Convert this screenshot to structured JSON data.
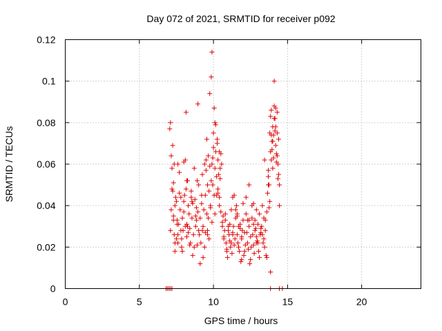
{
  "chart_data": {
    "type": "scatter",
    "title": "Day 072 of 2021, SRMTID for receiver p092",
    "xlabel": "GPS time / hours",
    "ylabel": "SRMTID / TECUs",
    "xlim": [
      0,
      24
    ],
    "ylim": [
      0,
      0.12
    ],
    "xticks": [
      "0",
      "5",
      "10",
      "15",
      "20"
    ],
    "yticks": [
      "0",
      "0.02",
      "0.04",
      "0.06",
      "0.08",
      "0.1",
      "0.12"
    ],
    "grid": true,
    "marker": "+",
    "color": "#e00000",
    "series": [
      {
        "name": "SRMTID",
        "x": [
          6.8,
          6.9,
          7.0,
          7.1,
          7.2,
          13.85,
          14.45,
          14.65,
          7.05,
          7.15,
          7.2,
          7.3,
          7.35,
          7.4,
          7.5,
          7.55,
          7.6,
          7.7,
          7.75,
          7.8,
          7.85,
          7.9,
          8.0,
          8.05,
          8.1,
          8.2,
          8.25,
          8.3,
          8.4,
          8.45,
          8.5,
          8.55,
          8.6,
          8.7,
          8.75,
          8.8,
          8.9,
          8.95,
          9.0,
          9.05,
          9.1,
          9.2,
          9.25,
          9.3,
          9.4,
          9.45,
          9.5,
          9.55,
          9.6,
          9.7,
          9.75,
          9.8,
          9.9,
          9.95,
          10.0,
          10.05,
          10.1,
          10.2,
          10.25,
          10.3,
          10.4,
          10.45,
          10.5,
          7.25,
          7.45,
          7.65,
          7.95,
          8.15,
          8.35,
          8.65,
          8.85,
          9.15,
          9.35,
          9.65,
          9.85,
          10.15,
          10.35,
          7.3,
          7.5,
          7.7,
          7.9,
          8.1,
          8.3,
          8.5,
          8.7,
          8.9,
          9.1,
          9.3,
          9.5,
          9.7,
          9.9,
          10.1,
          10.3,
          7.2,
          7.4,
          7.6,
          8.0,
          8.4,
          8.8,
          9.2,
          9.6,
          10.0,
          10.4,
          7.1,
          7.35,
          8.15,
          8.95,
          9.55,
          9.75,
          9.85,
          9.9,
          10.05,
          10.15,
          10.25,
          10.4,
          10.55,
          8.2,
          7.15,
          7.25,
          7.4,
          7.6,
          7.8,
          8.0,
          8.2,
          8.6,
          9.0,
          9.4,
          9.6,
          9.8,
          10.2,
          10.5,
          7.1,
          7.3,
          7.55,
          7.85,
          8.25,
          8.55,
          8.85,
          9.25,
          9.45,
          9.65,
          9.95,
          10.1,
          10.3,
          10.45,
          10.6,
          10.7,
          10.8,
          10.9,
          11.0,
          11.1,
          11.2,
          11.3,
          11.4,
          11.5,
          11.6,
          11.7,
          11.8,
          11.9,
          12.0,
          12.1,
          12.2,
          12.3,
          12.4,
          12.5,
          12.6,
          12.7,
          12.8,
          12.9,
          13.0,
          13.1,
          13.2,
          13.3,
          13.4,
          13.5,
          13.6,
          10.65,
          10.75,
          10.85,
          10.95,
          11.05,
          11.15,
          11.25,
          11.35,
          11.45,
          11.55,
          11.65,
          11.75,
          11.85,
          11.95,
          12.05,
          12.15,
          12.25,
          12.35,
          12.45,
          12.55,
          12.65,
          12.75,
          12.85,
          12.95,
          13.05,
          13.15,
          13.25,
          13.35,
          13.45,
          13.55,
          10.7,
          10.9,
          11.1,
          11.3,
          11.5,
          11.7,
          11.9,
          12.1,
          12.3,
          12.5,
          12.7,
          12.9,
          13.1,
          13.3,
          13.5,
          10.6,
          10.8,
          11.0,
          11.2,
          11.4,
          11.6,
          11.8,
          12.0,
          12.2,
          12.4,
          12.6,
          12.8,
          13.0,
          13.2,
          13.4,
          13.6,
          11.3,
          11.9,
          12.4,
          12.9,
          13.45,
          13.7,
          13.9,
          13.85,
          12.7,
          11.6,
          13.65,
          13.7,
          13.75,
          13.8,
          13.85,
          13.9,
          13.95,
          14.0,
          14.05,
          14.1,
          14.15,
          14.2,
          14.25,
          14.3,
          14.35,
          14.4,
          14.45,
          13.7,
          13.8,
          13.9,
          14.0,
          14.1,
          14.2,
          14.3,
          14.4,
          13.75,
          13.95,
          14.15,
          14.35,
          14.05,
          14.25,
          14.45,
          13.85,
          14.1,
          14.0,
          14.2,
          14.3
        ],
        "y": [
          0,
          0,
          0,
          0,
          0,
          0,
          0,
          0,
          0.077,
          0.064,
          0.048,
          0.035,
          0.026,
          0.018,
          0.042,
          0.031,
          0.022,
          0.056,
          0.038,
          0.028,
          0.02,
          0.034,
          0.061,
          0.045,
          0.03,
          0.025,
          0.052,
          0.04,
          0.029,
          0.022,
          0.047,
          0.034,
          0.016,
          0.058,
          0.043,
          0.03,
          0.021,
          0.037,
          0.05,
          0.026,
          0.012,
          0.041,
          0.055,
          0.03,
          0.02,
          0.045,
          0.062,
          0.036,
          0.028,
          0.047,
          0.059,
          0.04,
          0.032,
          0.05,
          0.068,
          0.045,
          0.036,
          0.054,
          0.072,
          0.048,
          0.04,
          0.058,
          0.065,
          0.069,
          0.044,
          0.031,
          0.028,
          0.048,
          0.036,
          0.026,
          0.039,
          0.022,
          0.038,
          0.064,
          0.052,
          0.066,
          0.055,
          0.033,
          0.024,
          0.046,
          0.018,
          0.062,
          0.027,
          0.044,
          0.02,
          0.052,
          0.034,
          0.015,
          0.057,
          0.024,
          0.06,
          0.08,
          0.062,
          0.058,
          0.04,
          0.026,
          0.042,
          0.021,
          0.035,
          0.045,
          0.026,
          0.075,
          0.044,
          0.08,
          0.06,
          0.085,
          0.089,
          0.072,
          0.094,
          0.102,
          0.114,
          0.087,
          0.079,
          0.07,
          0.066,
          0.06,
          0.052,
          0.038,
          0.047,
          0.022,
          0.06,
          0.044,
          0.037,
          0.031,
          0.041,
          0.028,
          0.06,
          0.05,
          0.039,
          0.045,
          0.037,
          0.028,
          0.051,
          0.033,
          0.024,
          0.03,
          0.042,
          0.033,
          0.028,
          0.027,
          0.034,
          0.063,
          0.058,
          0.046,
          0.053,
          0.03,
          0.025,
          0.033,
          0.018,
          0.03,
          0.023,
          0.038,
          0.027,
          0.021,
          0.034,
          0.026,
          0.02,
          0.031,
          0.024,
          0.033,
          0.027,
          0.036,
          0.022,
          0.03,
          0.025,
          0.034,
          0.021,
          0.028,
          0.025,
          0.031,
          0.036,
          0.027,
          0.04,
          0.024,
          0.033,
          0.037,
          0.035,
          0.028,
          0.022,
          0.015,
          0.026,
          0.02,
          0.017,
          0.03,
          0.024,
          0.04,
          0.022,
          0.018,
          0.013,
          0.028,
          0.016,
          0.021,
          0.027,
          0.019,
          0.012,
          0.02,
          0.026,
          0.017,
          0.029,
          0.023,
          0.018,
          0.026,
          0.03,
          0.022,
          0.02,
          0.016,
          0.024,
          0.019,
          0.031,
          0.026,
          0.038,
          0.03,
          0.025,
          0.018,
          0.033,
          0.014,
          0.031,
          0.022,
          0.015,
          0.026,
          0.028,
          0.032,
          0.036,
          0.028,
          0.022,
          0.045,
          0.035,
          0.029,
          0.041,
          0.044,
          0.033,
          0.04,
          0.033,
          0.022,
          0.029,
          0.034,
          0.015,
          0.044,
          0.014,
          0.05,
          0.038,
          0.062,
          0.054,
          0.062,
          0.008,
          0.041,
          0.036,
          0.046,
          0.057,
          0.05,
          0.042,
          0.066,
          0.074,
          0.071,
          0.078,
          0.063,
          0.088,
          0.082,
          0.069,
          0.065,
          0.075,
          0.06,
          0.055,
          0.05,
          0.05,
          0.075,
          0.086,
          0.058,
          0.082,
          0.087,
          0.064,
          0.072,
          0.039,
          0.067,
          0.076,
          0.053,
          0.074,
          0.061,
          0.04,
          0.083,
          0.1,
          0.071,
          0.078,
          0.085
        ]
      }
    ]
  }
}
